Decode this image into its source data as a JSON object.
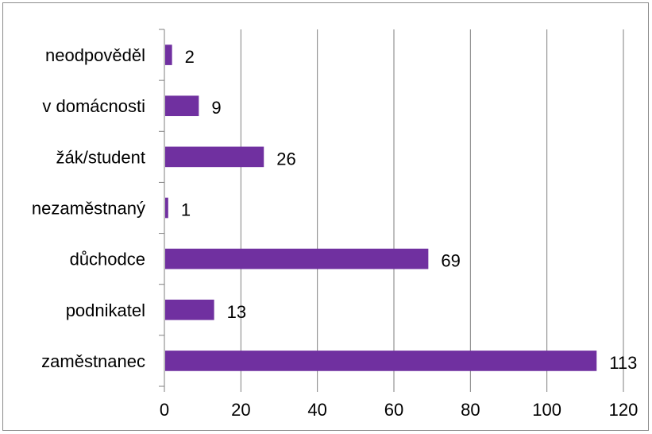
{
  "chart_data": {
    "type": "bar",
    "orientation": "horizontal",
    "title": "",
    "xlabel": "",
    "ylabel": "",
    "categories": [
      "zaměstnanec",
      "podnikatel",
      "důchodce",
      "nezaměstnaný",
      "žák/student",
      "v domácnosti",
      "neodpověděl"
    ],
    "values": [
      113,
      13,
      69,
      1,
      26,
      9,
      2
    ],
    "xlim": [
      0,
      120
    ],
    "xticks": [
      0,
      20,
      40,
      60,
      80,
      100,
      120
    ],
    "grid": "vertical",
    "legend": "none",
    "colors": {
      "bar": "#7030a0",
      "grid": "#7f7f7f",
      "axis": "#7f7f7f"
    }
  }
}
